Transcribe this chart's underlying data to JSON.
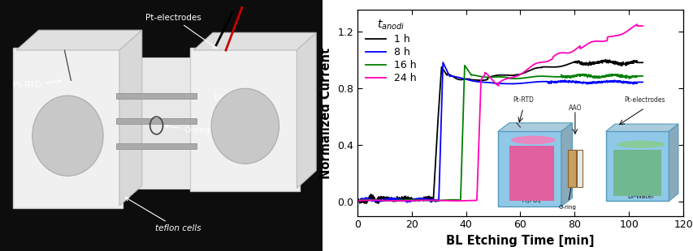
{
  "xlabel": "BL Etching Time [min]",
  "ylabel": "Normalized Current",
  "xlim": [
    0,
    120
  ],
  "ylim": [
    -0.1,
    1.35
  ],
  "yticks": [
    0.0,
    0.4,
    0.8,
    1.2
  ],
  "xticks": [
    0,
    20,
    40,
    60,
    80,
    100,
    120
  ],
  "series": [
    {
      "label": "1 h",
      "color": "#000000",
      "lw": 1.3
    },
    {
      "label": "8 h",
      "color": "#0000FF",
      "lw": 1.3
    },
    {
      "label": "16 h",
      "color": "#008000",
      "lw": 1.3
    },
    {
      "label": "24 h",
      "color": "#FF00BB",
      "lw": 1.3
    }
  ],
  "bg_color": "#ffffff",
  "photo_bg": "#1a1a1a",
  "photo_label_color": "#ffffff",
  "left_cell_color": "#e8e8e8",
  "right_cell_color": "#e8e8e8",
  "inset_cell_color": "#90c8e8",
  "inset_pink": "#e060a0",
  "inset_green": "#70b890",
  "inset_aao": "#c8a060"
}
